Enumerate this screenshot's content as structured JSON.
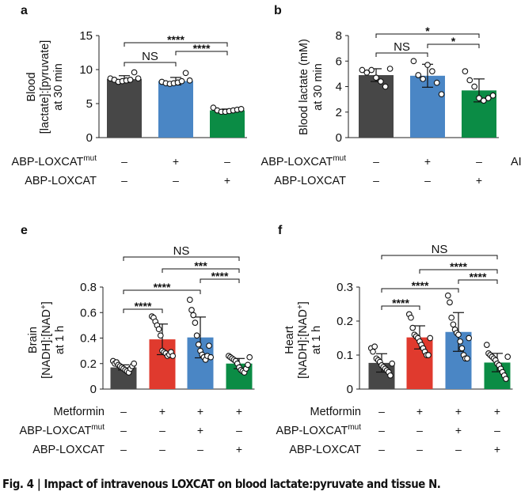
{
  "colors": {
    "control": "#474747",
    "mut": "#4a86c5",
    "loxcat": "#0b8c45",
    "metformin": "#e03a2e",
    "axis": "#222222"
  },
  "chart_data": [
    {
      "panel": "a",
      "type": "bar",
      "ylabel": [
        "Blood",
        "[lactate]:[pyruvate]",
        "at 30 min"
      ],
      "ylim": [
        0,
        15
      ],
      "yticks": [
        "0",
        "5",
        "10",
        "15"
      ],
      "ytick_values": [
        0,
        5,
        10,
        15
      ],
      "rows": [
        {
          "label": "ABP-LOXCAT",
          "sup": "mut",
          "signs": [
            "–",
            "+",
            "–"
          ]
        },
        {
          "label": "ABP-LOXCAT",
          "sup": "",
          "signs": [
            "–",
            "–",
            "+"
          ]
        }
      ],
      "bars": [
        {
          "color": "control",
          "mean": 8.6,
          "sd": 0.5,
          "points": [
            8.7,
            8.5,
            8.2,
            8.3,
            8.4,
            8.5,
            9.6,
            8.7
          ]
        },
        {
          "color": "mut",
          "mean": 8.3,
          "sd": 0.55,
          "points": [
            8.2,
            8.0,
            7.9,
            8.0,
            8.1,
            8.3,
            9.5,
            8.4
          ]
        },
        {
          "color": "loxcat",
          "mean": 4.0,
          "sd": 0.2,
          "points": [
            4.4,
            4.0,
            3.8,
            3.8,
            3.9,
            4.0,
            4.1,
            4.2
          ]
        }
      ],
      "comparisons": [
        {
          "from": 1,
          "to": 2,
          "label": "NS"
        },
        {
          "from": 2,
          "to": 3,
          "label": "****"
        },
        {
          "from": 1,
          "to": 3,
          "label": "****"
        }
      ]
    },
    {
      "panel": "b",
      "type": "bar",
      "ylabel": [
        "Blood lactate (mM)",
        "at 30 min"
      ],
      "ylim": [
        0,
        8
      ],
      "yticks": [
        "0",
        "2",
        "4",
        "6",
        "8"
      ],
      "ytick_values": [
        0,
        2,
        4,
        6,
        8
      ],
      "rows": [
        {
          "label": "ABP-LOXCAT",
          "sup": "mut",
          "signs": [
            "–",
            "+",
            "–"
          ]
        },
        {
          "label": "ABP-LOXCAT",
          "sup": "",
          "signs": [
            "–",
            "–",
            "+"
          ]
        }
      ],
      "bars": [
        {
          "color": "control",
          "mean": 4.9,
          "sd": 0.5,
          "points": [
            5.3,
            5.1,
            5.3,
            4.7,
            4.4,
            4.0,
            5.4
          ]
        },
        {
          "color": "mut",
          "mean": 4.85,
          "sd": 0.9,
          "points": [
            6.0,
            4.9,
            4.6,
            5.7,
            5.2,
            4.3,
            3.4
          ]
        },
        {
          "color": "loxcat",
          "mean": 3.7,
          "sd": 0.9,
          "points": [
            5.2,
            4.5,
            4.0,
            3.1,
            2.9,
            3.1,
            3.3
          ]
        }
      ],
      "comparisons": [
        {
          "from": 1,
          "to": 2,
          "label": "NS"
        },
        {
          "from": 2,
          "to": 3,
          "label": "*"
        },
        {
          "from": 1,
          "to": 3,
          "label": "*"
        }
      ]
    },
    {
      "panel": "e",
      "type": "bar",
      "ylabel": [
        "Brain",
        "[NADH]:[NAD+]",
        "at 1 h"
      ],
      "ylim": [
        0,
        0.8
      ],
      "yticks": [
        "0",
        "0.2",
        "0.4",
        "0.6",
        "0.8"
      ],
      "ytick_values": [
        0,
        0.2,
        0.4,
        0.6,
        0.8
      ],
      "rows": [
        {
          "label": "Metformin",
          "sup": "",
          "signs": [
            "–",
            "+",
            "+",
            "+"
          ]
        },
        {
          "label": "ABP-LOXCAT",
          "sup": "mut",
          "signs": [
            "–",
            "–",
            "+",
            "–"
          ]
        },
        {
          "label": "ABP-LOXCAT",
          "sup": "",
          "signs": [
            "–",
            "–",
            "–",
            "+"
          ]
        }
      ],
      "bars": [
        {
          "color": "control",
          "mean": 0.17,
          "sd": 0.02,
          "points": [
            0.22,
            0.2,
            0.21,
            0.19,
            0.18,
            0.17,
            0.16,
            0.15,
            0.14,
            0.13,
            0.16,
            0.18,
            0.2
          ]
        },
        {
          "color": "metformin",
          "mean": 0.39,
          "sd": 0.12,
          "points": [
            0.57,
            0.56,
            0.53,
            0.5,
            0.47,
            0.42,
            0.3,
            0.29,
            0.28,
            0.26,
            0.27,
            0.29,
            0.26
          ]
        },
        {
          "color": "mut",
          "mean": 0.405,
          "sd": 0.16,
          "points": [
            0.7,
            0.62,
            0.58,
            0.52,
            0.42,
            0.35,
            0.3,
            0.27,
            0.25,
            0.23,
            0.26,
            0.34,
            0.25
          ]
        },
        {
          "color": "loxcat",
          "mean": 0.2,
          "sd": 0.04,
          "points": [
            0.26,
            0.25,
            0.24,
            0.23,
            0.22,
            0.2,
            0.17,
            0.15,
            0.14,
            0.13,
            0.16,
            0.19,
            0.25
          ]
        }
      ],
      "comparisons": [
        {
          "from": 1,
          "to": 2,
          "label": "****"
        },
        {
          "from": 1,
          "to": 3,
          "label": "****"
        },
        {
          "from": 3,
          "to": 4,
          "label": "****"
        },
        {
          "from": 2,
          "to": 4,
          "label": "***"
        },
        {
          "from": 1,
          "to": 4,
          "label": "NS"
        }
      ]
    },
    {
      "panel": "f",
      "type": "bar",
      "ylabel": [
        "Heart",
        "[NADH]:[NAD+]",
        "at 1 h"
      ],
      "ylim": [
        0,
        0.3
      ],
      "yticks": [
        "0",
        "0.1",
        "0.2",
        "0.3"
      ],
      "ytick_values": [
        0,
        0.1,
        0.2,
        0.3
      ],
      "rows": [
        {
          "label": "Metformin",
          "sup": "",
          "signs": [
            "–",
            "+",
            "+",
            "+"
          ]
        },
        {
          "label": "ABP-LOXCAT",
          "sup": "mut",
          "signs": [
            "–",
            "–",
            "+",
            "–"
          ]
        },
        {
          "label": "ABP-LOXCAT",
          "sup": "",
          "signs": [
            "–",
            "–",
            "–",
            "+"
          ]
        }
      ],
      "bars": [
        {
          "color": "control",
          "mean": 0.077,
          "sd": 0.027,
          "points": [
            0.12,
            0.11,
            0.125,
            0.09,
            0.085,
            0.08,
            0.07,
            0.065,
            0.06,
            0.055,
            0.05,
            0.04,
            0.075
          ]
        },
        {
          "color": "metformin",
          "mean": 0.152,
          "sd": 0.034,
          "points": [
            0.22,
            0.21,
            0.18,
            0.16,
            0.155,
            0.15,
            0.14,
            0.13,
            0.12,
            0.11,
            0.1,
            0.1,
            0.15
          ]
        },
        {
          "color": "mut",
          "mean": 0.168,
          "sd": 0.057,
          "points": [
            0.275,
            0.255,
            0.21,
            0.19,
            0.175,
            0.165,
            0.16,
            0.14,
            0.12,
            0.1,
            0.09,
            0.09,
            0.15
          ]
        },
        {
          "color": "loxcat",
          "mean": 0.078,
          "sd": 0.027,
          "points": [
            0.13,
            0.105,
            0.1,
            0.095,
            0.09,
            0.085,
            0.075,
            0.07,
            0.06,
            0.05,
            0.04,
            0.03,
            0.095
          ]
        }
      ],
      "comparisons": [
        {
          "from": 1,
          "to": 2,
          "label": "****"
        },
        {
          "from": 1,
          "to": 3,
          "label": "****"
        },
        {
          "from": 3,
          "to": 4,
          "label": "****"
        },
        {
          "from": 2,
          "to": 4,
          "label": "****"
        },
        {
          "from": 1,
          "to": 4,
          "label": "NS"
        }
      ]
    }
  ],
  "cropped_fragment": "AI",
  "caption": "Fig. 4 | Impact of intravenous LOXCAT on blood lactate:pyruvate and tissue N."
}
